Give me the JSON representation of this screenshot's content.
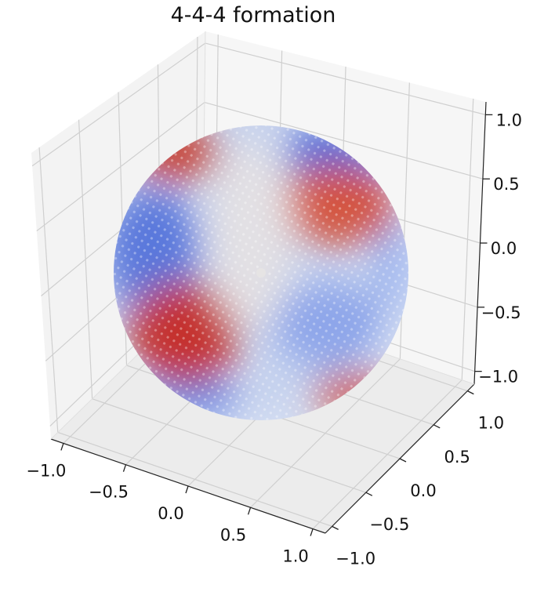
{
  "chart_data": {
    "type": "3d-surface-scatter",
    "title": "4-4-4 formation",
    "colormap": "coolwarm",
    "colors": {
      "red": "#b40426",
      "blue": "#3b4cc0",
      "neutral": "#dddcdc"
    },
    "surface": "unit sphere",
    "xlim": [
      -1.1,
      1.1
    ],
    "ylim": [
      -1.1,
      1.1
    ],
    "zlim": [
      -1.1,
      1.1
    ],
    "grid": true,
    "x_ticks": [
      "−1.0",
      "−0.5",
      "0.0",
      "0.5",
      "1.0"
    ],
    "y_ticks": [
      "−1.0",
      "−0.5",
      "0.0",
      "0.5",
      "1.0"
    ],
    "z_ticks": [
      "−1.0",
      "−0.5",
      "0.0",
      "0.5",
      "1.0"
    ],
    "tick_values": [
      -1.0,
      -0.5,
      0.0,
      0.5,
      1.0
    ]
  }
}
